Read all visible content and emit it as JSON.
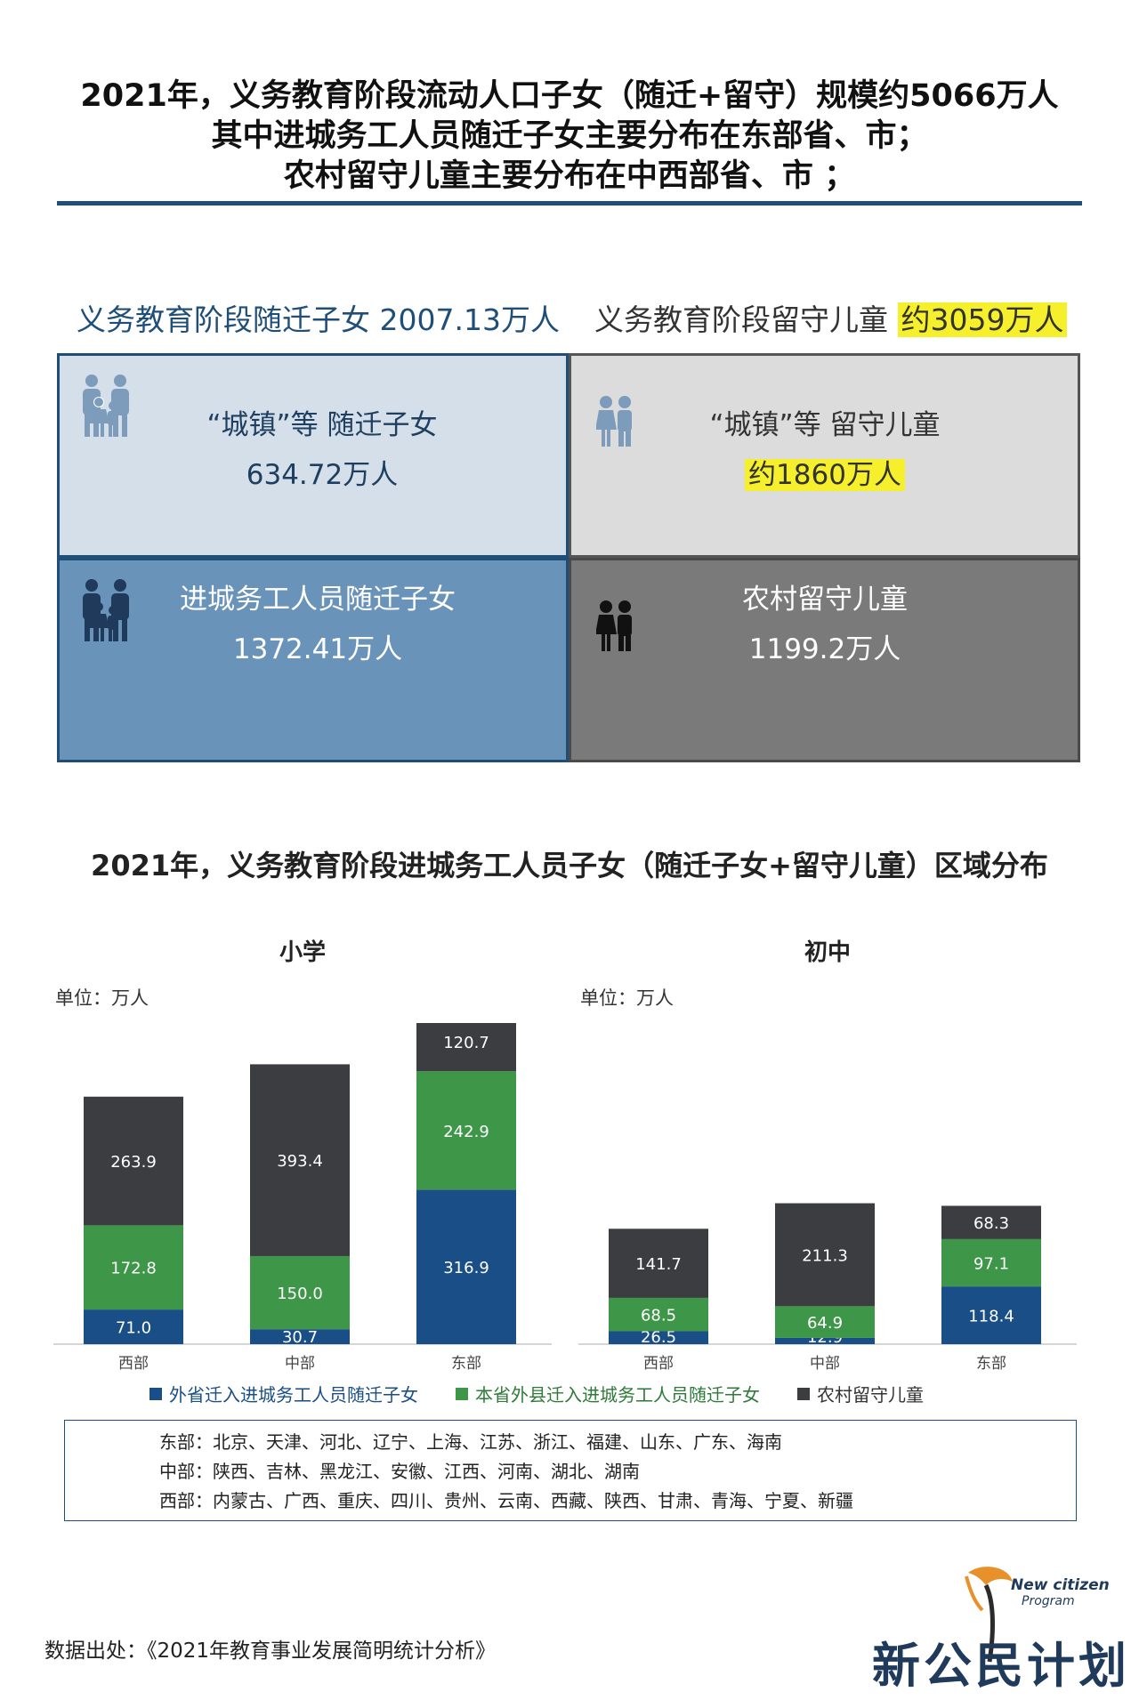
{
  "header": {
    "lines": [
      "2021年，义务教育阶段流动人口子女（随迁+留守）规模约5066万人",
      "其中进城务工人员随迁子女主要分布在东部省、市；",
      "农村留守儿童主要分布在中西部省、市 ；"
    ]
  },
  "summary": {
    "left_label": "义务教育阶段随迁子女 2007.13万人",
    "right_label": "义务教育阶段留守儿童",
    "right_value": "约3059万人"
  },
  "grid": {
    "top_left": {
      "line1": "“城镇”等 随迁子女",
      "line2": "634.72万人",
      "icon": "family-icon"
    },
    "top_right": {
      "line1": "“城镇”等 留守儿童",
      "line2": "约1860万人",
      "icon": "children-icon"
    },
    "bottom_left": {
      "line1": "进城务工人员随迁子女",
      "line2": "1372.41万人",
      "icon": "family-icon"
    },
    "bottom_right": {
      "line1": "农村留守儿童",
      "line2": "1199.2万人",
      "icon": "children-icon"
    }
  },
  "colors": {
    "series_blue": "#1a4e86",
    "series_green": "#3e9648",
    "series_dark": "#3b3d40",
    "highlight": "#f6f02c",
    "brand_navy": "#1f4e79"
  },
  "chart_data": [
    {
      "type": "bar",
      "stacked": true,
      "title": "小学",
      "unit_label": "单位：万人",
      "categories": [
        "西部",
        "中部",
        "东部"
      ],
      "series": [
        {
          "name": "外省迁入进城务工人员随迁子女",
          "values": [
            71.0,
            30.7,
            316.9
          ]
        },
        {
          "name": "本省外县迁入进城务工人员随迁子女",
          "values": [
            172.8,
            150.0,
            242.9
          ]
        },
        {
          "name": "农村留守儿童",
          "values": [
            263.9,
            393.4,
            120.7
          ]
        }
      ],
      "value_labels": [
        [
          "71.0",
          "30.7",
          "316.9"
        ],
        [
          "172.8",
          "150.0",
          "242.9"
        ],
        [
          "263.9",
          "393.4",
          "120.7"
        ]
      ]
    },
    {
      "type": "bar",
      "stacked": true,
      "title": "初中",
      "unit_label": "单位：万人",
      "categories": [
        "西部",
        "中部",
        "东部"
      ],
      "series": [
        {
          "name": "外省迁入进城务工人员随迁子女",
          "values": [
            26.5,
            12.9,
            118.4
          ]
        },
        {
          "name": "本省外县迁入进城务工人员随迁子女",
          "values": [
            68.5,
            64.9,
            97.1
          ]
        },
        {
          "name": "农村留守儿童",
          "values": [
            141.7,
            211.3,
            68.3
          ]
        }
      ],
      "value_labels": [
        [
          "26.5",
          "12.9",
          "118.4"
        ],
        [
          "68.5",
          "64.9",
          "97.1"
        ],
        [
          "141.7",
          "211.3",
          "68.3"
        ]
      ]
    }
  ],
  "chart_title": "2021年，义务教育阶段进城务工人员子女（随迁子女+留守儿童）区域分布",
  "legend": [
    "外省迁入进城务工人员随迁子女",
    "本省外县迁入进城务工人员随迁子女",
    "农村留守儿童"
  ],
  "regions": [
    "东部：北京、天津、河北、辽宁、上海、江苏、浙江、福建、山东、广东、海南",
    "中部：陕西、吉林、黑龙江、安徽、江西、河南、湖北、湖南",
    "西部：内蒙古、广西、重庆、四川、贵州、云南、西藏、陕西、甘肃、青海、宁夏、新疆"
  ],
  "source": "数据出处：《2021年教育事业发展简明统计分析》",
  "logo": {
    "main": "新公民计划",
    "sub1": "New citizen",
    "sub2": "Program"
  }
}
